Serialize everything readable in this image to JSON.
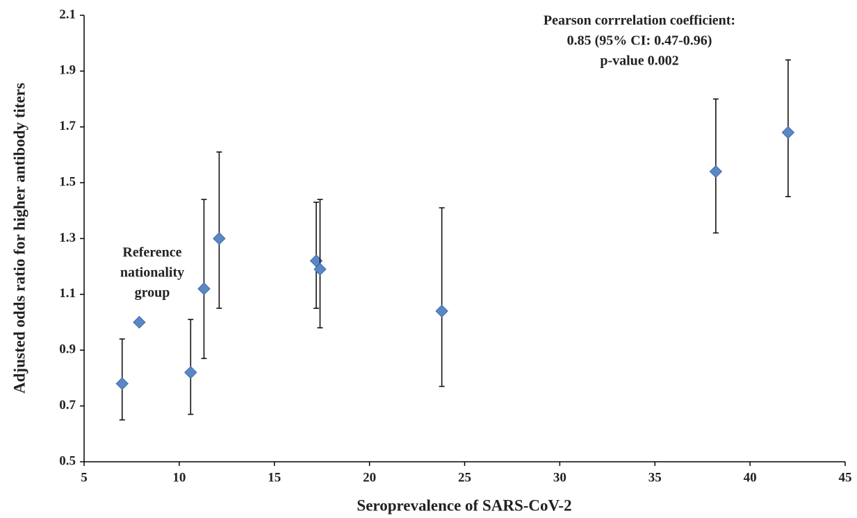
{
  "chart_data": {
    "type": "scatter",
    "x_label": "Seroprevalence of SARS-CoV-2",
    "y_label": "Adjusted odds ratio for higher antibody titers",
    "xlim": [
      5,
      45
    ],
    "xticks": [
      5,
      10,
      15,
      20,
      25,
      30,
      35,
      40,
      45
    ],
    "ylim": [
      0.5,
      2.1
    ],
    "yticks": [
      0.5,
      0.7,
      0.9,
      1.1,
      1.3,
      1.5,
      1.7,
      1.9,
      2.1
    ],
    "grid": false,
    "series": [
      {
        "color": "#5b87c5",
        "x": [
          7.0,
          7.9,
          10.6,
          11.3,
          12.1,
          17.2,
          17.4,
          23.8,
          38.2,
          42.0
        ],
        "values": [
          0.78,
          1.0,
          0.82,
          1.12,
          1.3,
          1.22,
          1.19,
          1.04,
          1.54,
          1.68
        ],
        "lower": [
          0.65,
          null,
          0.67,
          0.87,
          1.05,
          1.05,
          0.98,
          0.77,
          1.32,
          1.45
        ],
        "upper": [
          0.94,
          null,
          1.01,
          1.44,
          1.61,
          1.43,
          1.44,
          1.41,
          1.8,
          1.94
        ]
      }
    ],
    "annotations": [
      {
        "lines": [
          "Pearson corrrelation coefficient:",
          "0.85 (95% CI: 0.47-0.96)",
          "p-value 0.002"
        ]
      },
      {
        "lines": [
          "Reference",
          "nationality",
          "group"
        ]
      }
    ]
  }
}
